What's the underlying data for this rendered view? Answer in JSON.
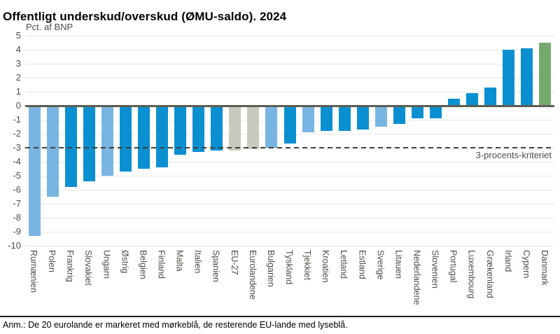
{
  "page": {
    "title": "Offentligt underskud/overskud (ØMU-saldo). 2024",
    "note": "Anm.: De 20 eurolande er markeret med mørkeblå, de resterende EU-lande med lyseblå."
  },
  "chart_data": {
    "type": "bar",
    "title": "Offentligt underskud/overskud (ØMU-saldo). 2024",
    "xlabel": "",
    "ylabel": "Pct. af BNP",
    "ylim": [
      -10,
      5
    ],
    "yticks": [
      5,
      4,
      3,
      2,
      1,
      0,
      -1,
      -2,
      -3,
      -4,
      -5,
      -6,
      -7,
      -8,
      -9,
      -10
    ],
    "grid": true,
    "legend_position": "none",
    "threshold": {
      "value": -3,
      "label": "3-procents-kriteriet"
    },
    "categories": [
      "Rumænien",
      "Polen",
      "Frankrig",
      "Slovakiet",
      "Ungarn",
      "Østrig",
      "Belgien",
      "Finland",
      "Malta",
      "Italien",
      "Spanien",
      "EU-27",
      "Eurolandene",
      "Bulgarien",
      "Tyskland",
      "Tjekkiet",
      "Kroatien",
      "Letland",
      "Estland",
      "Sverige",
      "Litauen",
      "Nederlandene",
      "Slovenien",
      "Portugal",
      "Luxembourg",
      "Grækenland",
      "Irland",
      "Cypern",
      "Danmark"
    ],
    "values": [
      -9.3,
      -6.5,
      -5.8,
      -5.4,
      -5.0,
      -4.7,
      -4.5,
      -4.4,
      -3.5,
      -3.3,
      -3.2,
      -3.2,
      -3.1,
      -3.0,
      -2.7,
      -1.9,
      -1.8,
      -1.8,
      -1.7,
      -1.5,
      -1.3,
      -0.9,
      -0.9,
      0.5,
      0.9,
      1.3,
      4.0,
      4.1,
      4.5
    ],
    "groups": [
      "non_euro",
      "non_euro",
      "euro",
      "euro",
      "non_euro",
      "euro",
      "euro",
      "euro",
      "euro",
      "euro",
      "euro",
      "aggregate",
      "aggregate",
      "non_euro",
      "euro",
      "non_euro",
      "euro",
      "euro",
      "euro",
      "non_euro",
      "euro",
      "euro",
      "euro",
      "euro",
      "euro",
      "euro",
      "euro",
      "euro",
      "denmark"
    ],
    "colors": {
      "euro": "#0a90d1",
      "non_euro": "#79b5e3",
      "aggregate": "#c9c9bd",
      "denmark": "#76a96d",
      "gridline": "#e7e7e1",
      "zero_line": "#5d5c52",
      "threshold_line": "#3f3f39"
    }
  }
}
